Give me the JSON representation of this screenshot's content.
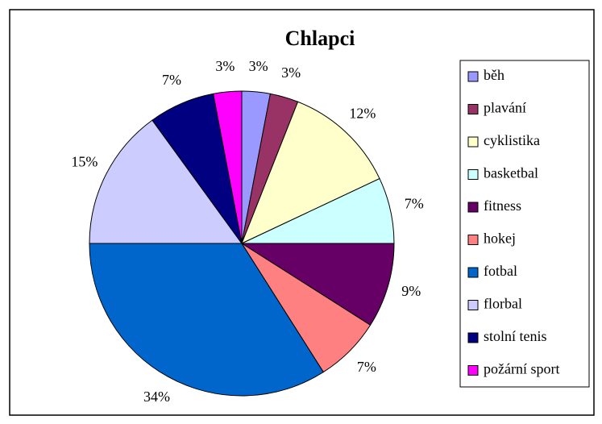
{
  "chart_data": {
    "type": "pie",
    "title": "Chlapci",
    "categories": [
      "běh",
      "plavání",
      "cyklistika",
      "basketbal",
      "fitness",
      "hokej",
      "fotbal",
      "florbal",
      "stolní tenis",
      "požární sport"
    ],
    "values": [
      3,
      3,
      12,
      7,
      9,
      7,
      34,
      15,
      7,
      3
    ],
    "value_labels": [
      "3%",
      "3%",
      "12%",
      "7%",
      "9%",
      "7%",
      "34%",
      "15%",
      "7%",
      "3%"
    ],
    "colors": [
      "#9999ff",
      "#993366",
      "#ffffcc",
      "#ccffff",
      "#660066",
      "#ff8080",
      "#0066cc",
      "#ccccff",
      "#000080",
      "#ff00ff"
    ],
    "legend": "right"
  }
}
